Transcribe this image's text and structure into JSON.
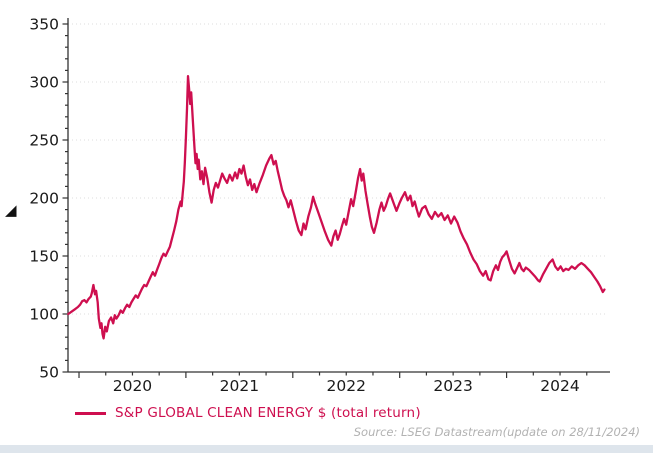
{
  "legend": {
    "label": "S&P GLOBAL CLEAN ENERGY $ (total return)"
  },
  "source_note": "Source: LSEG Datastream(update on 28/11/2024)",
  "icons": {
    "triangle_marker": "◢"
  },
  "colors": {
    "series": "#CE0F4F",
    "axis": "#333333",
    "grid": "#dcdcdc",
    "tick_label": "#1a1a1a",
    "source_text": "#b2b2b2",
    "bottom_bar": "#dee5ec",
    "background": "#ffffff"
  },
  "chart_data": {
    "type": "line",
    "title": "",
    "xlabel": "",
    "ylabel": "",
    "xlim": [
      2019.897,
      2024.93
    ],
    "ylim": [
      50,
      350
    ],
    "y_ticks_major": [
      50,
      100,
      150,
      200,
      250,
      300,
      350
    ],
    "y_minor_step": 10,
    "x_year_ticks": [
      2020,
      2021,
      2022,
      2023,
      2024
    ],
    "x_year_labels": [
      "2020",
      "2021",
      "2022",
      "2023",
      "2024"
    ],
    "x_minor_step": 0.25,
    "grid": "horizontal-dotted",
    "legend_position": "bottom-left",
    "series": [
      {
        "name": "S&P GLOBAL CLEAN ENERGY $ (total return)",
        "color": "#CE0F4F",
        "points": [
          [
            2019.9,
            100
          ],
          [
            2019.93,
            102
          ],
          [
            2019.96,
            104
          ],
          [
            2019.99,
            106
          ],
          [
            2020.01,
            108
          ],
          [
            2020.03,
            111
          ],
          [
            2020.05,
            112
          ],
          [
            2020.07,
            110
          ],
          [
            2020.09,
            113
          ],
          [
            2020.11,
            115
          ],
          [
            2020.12,
            118
          ],
          [
            2020.135,
            125
          ],
          [
            2020.15,
            117
          ],
          [
            2020.16,
            120
          ],
          [
            2020.175,
            110
          ],
          [
            2020.185,
            96
          ],
          [
            2020.2,
            88
          ],
          [
            2020.21,
            92
          ],
          [
            2020.22,
            83
          ],
          [
            2020.23,
            79
          ],
          [
            2020.245,
            89
          ],
          [
            2020.26,
            85
          ],
          [
            2020.28,
            94
          ],
          [
            2020.3,
            97
          ],
          [
            2020.32,
            92
          ],
          [
            2020.335,
            99
          ],
          [
            2020.35,
            96
          ],
          [
            2020.37,
            99
          ],
          [
            2020.39,
            103
          ],
          [
            2020.41,
            101
          ],
          [
            2020.43,
            105
          ],
          [
            2020.45,
            108
          ],
          [
            2020.47,
            106
          ],
          [
            2020.49,
            110
          ],
          [
            2020.51,
            113
          ],
          [
            2020.53,
            116
          ],
          [
            2020.55,
            114
          ],
          [
            2020.57,
            118
          ],
          [
            2020.59,
            122
          ],
          [
            2020.61,
            125
          ],
          [
            2020.63,
            124
          ],
          [
            2020.65,
            128
          ],
          [
            2020.67,
            132
          ],
          [
            2020.69,
            136
          ],
          [
            2020.71,
            133
          ],
          [
            2020.73,
            138
          ],
          [
            2020.75,
            143
          ],
          [
            2020.77,
            148
          ],
          [
            2020.79,
            152
          ],
          [
            2020.81,
            150
          ],
          [
            2020.83,
            154
          ],
          [
            2020.85,
            158
          ],
          [
            2020.87,
            165
          ],
          [
            2020.89,
            172
          ],
          [
            2020.91,
            180
          ],
          [
            2020.93,
            190
          ],
          [
            2020.95,
            197
          ],
          [
            2020.96,
            193
          ],
          [
            2020.97,
            204
          ],
          [
            2020.98,
            214
          ],
          [
            2020.99,
            230
          ],
          [
            2021.0,
            252
          ],
          [
            2021.01,
            277
          ],
          [
            2021.02,
            305
          ],
          [
            2021.03,
            294
          ],
          [
            2021.04,
            281
          ],
          [
            2021.05,
            291
          ],
          [
            2021.065,
            266
          ],
          [
            2021.08,
            243
          ],
          [
            2021.09,
            230
          ],
          [
            2021.1,
            238
          ],
          [
            2021.11,
            225
          ],
          [
            2021.12,
            233
          ],
          [
            2021.135,
            216
          ],
          [
            2021.15,
            223
          ],
          [
            2021.165,
            212
          ],
          [
            2021.18,
            226
          ],
          [
            2021.2,
            217
          ],
          [
            2021.22,
            205
          ],
          [
            2021.24,
            196
          ],
          [
            2021.26,
            207
          ],
          [
            2021.28,
            213
          ],
          [
            2021.3,
            209
          ],
          [
            2021.32,
            215
          ],
          [
            2021.34,
            221
          ],
          [
            2021.36,
            217
          ],
          [
            2021.385,
            213
          ],
          [
            2021.41,
            220
          ],
          [
            2021.435,
            215
          ],
          [
            2021.46,
            222
          ],
          [
            2021.48,
            217
          ],
          [
            2021.5,
            225
          ],
          [
            2021.52,
            221
          ],
          [
            2021.54,
            228
          ],
          [
            2021.56,
            218
          ],
          [
            2021.58,
            211
          ],
          [
            2021.6,
            216
          ],
          [
            2021.62,
            207
          ],
          [
            2021.64,
            212
          ],
          [
            2021.66,
            205
          ],
          [
            2021.69,
            213
          ],
          [
            2021.72,
            220
          ],
          [
            2021.75,
            228
          ],
          [
            2021.78,
            234
          ],
          [
            2021.8,
            237
          ],
          [
            2021.82,
            229
          ],
          [
            2021.84,
            232
          ],
          [
            2021.86,
            223
          ],
          [
            2021.88,
            215
          ],
          [
            2021.9,
            207
          ],
          [
            2021.92,
            202
          ],
          [
            2021.94,
            198
          ],
          [
            2021.96,
            192
          ],
          [
            2021.98,
            198
          ],
          [
            2022.0,
            191
          ],
          [
            2022.03,
            180
          ],
          [
            2022.055,
            172
          ],
          [
            2022.08,
            168
          ],
          [
            2022.1,
            178
          ],
          [
            2022.12,
            173
          ],
          [
            2022.145,
            184
          ],
          [
            2022.17,
            192
          ],
          [
            2022.19,
            201
          ],
          [
            2022.21,
            195
          ],
          [
            2022.24,
            187
          ],
          [
            2022.27,
            179
          ],
          [
            2022.3,
            171
          ],
          [
            2022.33,
            164
          ],
          [
            2022.36,
            159
          ],
          [
            2022.38,
            167
          ],
          [
            2022.4,
            172
          ],
          [
            2022.42,
            164
          ],
          [
            2022.44,
            169
          ],
          [
            2022.46,
            176
          ],
          [
            2022.48,
            182
          ],
          [
            2022.5,
            177
          ],
          [
            2022.52,
            187
          ],
          [
            2022.545,
            199
          ],
          [
            2022.565,
            193
          ],
          [
            2022.59,
            206
          ],
          [
            2022.61,
            217
          ],
          [
            2022.63,
            225
          ],
          [
            2022.645,
            215
          ],
          [
            2022.66,
            221
          ],
          [
            2022.68,
            206
          ],
          [
            2022.7,
            195
          ],
          [
            2022.72,
            184
          ],
          [
            2022.74,
            175
          ],
          [
            2022.76,
            170
          ],
          [
            2022.785,
            179
          ],
          [
            2022.81,
            190
          ],
          [
            2022.83,
            196
          ],
          [
            2022.85,
            189
          ],
          [
            2022.87,
            193
          ],
          [
            2022.89,
            199
          ],
          [
            2022.91,
            204
          ],
          [
            2022.93,
            199
          ],
          [
            2022.95,
            194
          ],
          [
            2022.97,
            189
          ],
          [
            2023.0,
            196
          ],
          [
            2023.02,
            200
          ],
          [
            2023.05,
            205
          ],
          [
            2023.075,
            198
          ],
          [
            2023.1,
            202
          ],
          [
            2023.12,
            193
          ],
          [
            2023.14,
            197
          ],
          [
            2023.16,
            190
          ],
          [
            2023.18,
            184
          ],
          [
            2023.21,
            191
          ],
          [
            2023.24,
            193
          ],
          [
            2023.27,
            186
          ],
          [
            2023.3,
            182
          ],
          [
            2023.33,
            188
          ],
          [
            2023.36,
            184
          ],
          [
            2023.39,
            187
          ],
          [
            2023.42,
            181
          ],
          [
            2023.45,
            185
          ],
          [
            2023.48,
            178
          ],
          [
            2023.51,
            184
          ],
          [
            2023.54,
            179
          ],
          [
            2023.57,
            171
          ],
          [
            2023.6,
            165
          ],
          [
            2023.63,
            160
          ],
          [
            2023.66,
            153
          ],
          [
            2023.69,
            147
          ],
          [
            2023.72,
            143
          ],
          [
            2023.75,
            137
          ],
          [
            2023.78,
            133
          ],
          [
            2023.805,
            137
          ],
          [
            2023.83,
            130
          ],
          [
            2023.85,
            129
          ],
          [
            2023.875,
            137
          ],
          [
            2023.9,
            142
          ],
          [
            2023.92,
            138
          ],
          [
            2023.94,
            145
          ],
          [
            2023.96,
            149
          ],
          [
            2023.98,
            151
          ],
          [
            2024.0,
            154
          ],
          [
            2024.025,
            146
          ],
          [
            2024.05,
            139
          ],
          [
            2024.075,
            135
          ],
          [
            2024.1,
            140
          ],
          [
            2024.12,
            144
          ],
          [
            2024.14,
            139
          ],
          [
            2024.16,
            137
          ],
          [
            2024.18,
            140
          ],
          [
            2024.21,
            138
          ],
          [
            2024.24,
            135
          ],
          [
            2024.27,
            132
          ],
          [
            2024.295,
            129
          ],
          [
            2024.31,
            128
          ],
          [
            2024.34,
            134
          ],
          [
            2024.37,
            139
          ],
          [
            2024.4,
            144
          ],
          [
            2024.43,
            147
          ],
          [
            2024.455,
            141
          ],
          [
            2024.48,
            138
          ],
          [
            2024.505,
            141
          ],
          [
            2024.53,
            137
          ],
          [
            2024.555,
            139
          ],
          [
            2024.58,
            138
          ],
          [
            2024.61,
            141
          ],
          [
            2024.64,
            139
          ],
          [
            2024.67,
            142
          ],
          [
            2024.7,
            144
          ],
          [
            2024.73,
            142
          ],
          [
            2024.76,
            139
          ],
          [
            2024.79,
            136
          ],
          [
            2024.82,
            132
          ],
          [
            2024.85,
            128
          ],
          [
            2024.875,
            124
          ],
          [
            2024.9,
            119
          ],
          [
            2024.915,
            121
          ]
        ]
      }
    ]
  }
}
